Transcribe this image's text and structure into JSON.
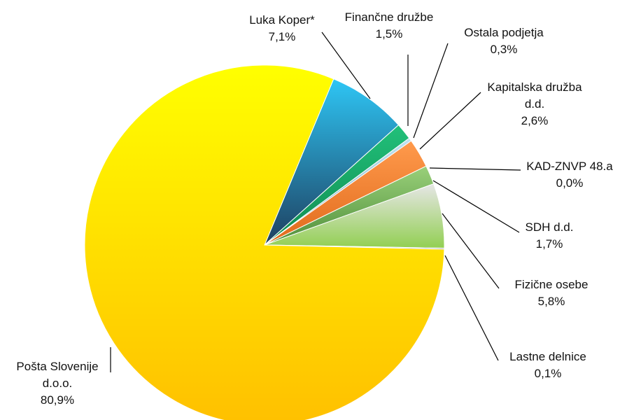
{
  "chart_data": {
    "type": "pie",
    "title": "",
    "slices": [
      {
        "label": "Luka Koper*",
        "value_text": "7,1%",
        "value": 7.1,
        "color_light": "#2ec6f5",
        "color_dark": "#1e3f5f"
      },
      {
        "label": "Finančne družbe",
        "value_text": "1,5%",
        "value": 1.5,
        "color_light": "#21c07a",
        "color_dark": "#0f8a50"
      },
      {
        "label": "Ostala podjetja",
        "value_text": "0,3%",
        "value": 0.3,
        "color_light": "#bfe3f2",
        "color_dark": "#7aa7bb"
      },
      {
        "label": "Kapitalska družba d.d.",
        "label_lines": [
          "Kapitalska družba",
          "d.d."
        ],
        "value_text": "2,6%",
        "value": 2.6,
        "color_light": "#ff9a4c",
        "color_dark": "#e06a1c"
      },
      {
        "label": "KAD-ZNVP 48.a",
        "value_text": "0,0%",
        "value": 0.0,
        "color_light": "#c0c0c0",
        "color_dark": "#909090"
      },
      {
        "label": "SDH d.d.",
        "value_text": "1,7%",
        "value": 1.7,
        "color_light": "#9ad07a",
        "color_dark": "#4f8f3a"
      },
      {
        "label": "Fizične osebe",
        "value_text": "5,8%",
        "value": 5.8,
        "color_light": "#e6e6e6",
        "color_dark": "#92cf52"
      },
      {
        "label": "Lastne delnice",
        "value_text": "0,1%",
        "value": 0.1,
        "color_light": "#b5b5b5",
        "color_dark": "#7a7a7a"
      },
      {
        "label": "Pošta Slovenije d.o.o.",
        "label_lines": [
          "Pošta Slovenije",
          "d.o.o."
        ],
        "value_text": "80,9%",
        "value": 80.9,
        "color_light": "#ffff00",
        "color_dark": "#ffc000"
      }
    ]
  }
}
